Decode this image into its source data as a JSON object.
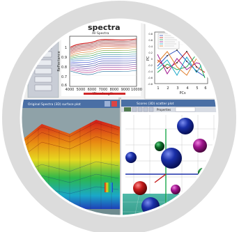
{
  "spectra_window": {
    "title": "spectra",
    "subtitle": "All Spectra",
    "xlabel": "Wavelength",
    "ylabel": "Reflectance",
    "x_ticks": [
      "4000",
      "5000",
      "6000",
      "7000",
      "8000",
      "9000",
      "10000"
    ],
    "y_ticks": [
      "0.6",
      "0.7",
      "0.8",
      "0.9",
      "1"
    ]
  },
  "loadings_window": {
    "xlabel": "PCs",
    "ylabel": "PC",
    "x_ticks": [
      "1",
      "2",
      "3",
      "4",
      "5",
      "6"
    ],
    "y_ticks": [
      "0.8",
      "0.6",
      "0.4",
      "0.2",
      "0",
      "-0.2",
      "-0.4",
      "-0.6",
      "-0.8"
    ]
  },
  "surface_window": {
    "title": "Original Spectra (3D) surface plot"
  },
  "scatter3d_window": {
    "title": "Scores (3D) scatter plot",
    "toolbar_label": "Properties"
  },
  "colors": {
    "ring": "#d9d9d9",
    "window_blue": "#4a6fa5",
    "sphere_blue": "#1a2fa8",
    "sphere_purple": "#a0168e",
    "sphere_green": "#0f6b2a",
    "sphere_red": "#c51a1a",
    "axis_blue": "#2b4fbe"
  },
  "icons": [
    "window-close-icon",
    "window-minimize-icon",
    "toolbar-icon"
  ]
}
